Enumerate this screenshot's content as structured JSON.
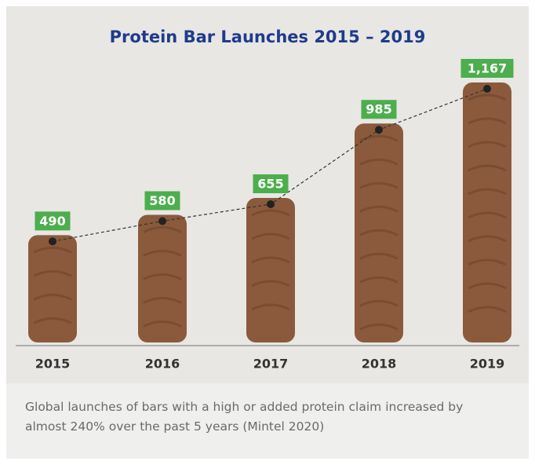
{
  "chart_data": {
    "type": "bar",
    "title": "Protein Bar Launches 2015 – 2019",
    "categories": [
      "2015",
      "2016",
      "2017",
      "2018",
      "2019"
    ],
    "values": [
      490,
      580,
      655,
      985,
      1167
    ],
    "value_labels": [
      "490",
      "580",
      "655",
      "985",
      "1,167"
    ],
    "color": "#8b5a3c",
    "label_color": "#4cae4c",
    "caption": "Global launches of bars with a high or added protein claim increased by almost 240% over the past 5 years (Mintel 2020)"
  }
}
